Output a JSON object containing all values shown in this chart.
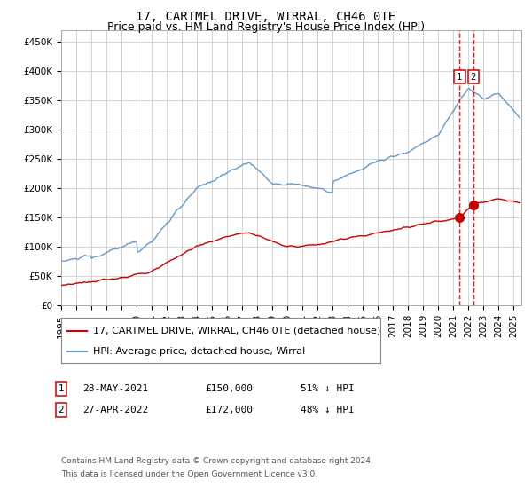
{
  "title": "17, CARTMEL DRIVE, WIRRAL, CH46 0TE",
  "subtitle": "Price paid vs. HM Land Registry's House Price Index (HPI)",
  "ylabel_ticks": [
    "£0",
    "£50K",
    "£100K",
    "£150K",
    "£200K",
    "£250K",
    "£300K",
    "£350K",
    "£400K",
    "£450K"
  ],
  "ytick_values": [
    0,
    50000,
    100000,
    150000,
    200000,
    250000,
    300000,
    350000,
    400000,
    450000
  ],
  "ylim": [
    0,
    470000
  ],
  "xlim_start": 1995.0,
  "xlim_end": 2025.5,
  "hpi_color": "#6699cc",
  "property_color": "#cc0000",
  "dashed_line_color": "#cc0000",
  "grid_color": "#cccccc",
  "bg_color": "#ffffff",
  "legend_label_property": "17, CARTMEL DRIVE, WIRRAL, CH46 0TE (detached house)",
  "legend_label_hpi": "HPI: Average price, detached house, Wirral",
  "sale1_date": "28-MAY-2021",
  "sale1_price": "£150,000",
  "sale1_pct": "51% ↓ HPI",
  "sale1_year": 2021.41,
  "sale2_date": "27-APR-2022",
  "sale2_price": "£172,000",
  "sale2_pct": "48% ↓ HPI",
  "sale2_year": 2022.32,
  "footnote_line1": "Contains HM Land Registry data © Crown copyright and database right 2024.",
  "footnote_line2": "This data is licensed under the Open Government Licence v3.0.",
  "title_fontsize": 10,
  "subtitle_fontsize": 9,
  "tick_fontsize": 7.5,
  "legend_fontsize": 8,
  "footnote_fontsize": 6.5
}
